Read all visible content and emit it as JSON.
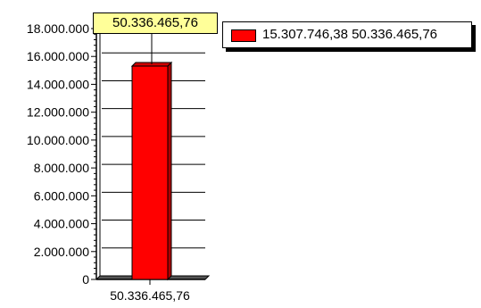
{
  "chart_data": {
    "type": "bar",
    "categories": [
      "50.336.465,76"
    ],
    "series": [
      {
        "name": "15.307.746,38 50.336.465,76",
        "values": [
          15307746.38
        ],
        "color": "#ff0000"
      }
    ],
    "yticks": [
      "0",
      "2.000.000",
      "4.000.000",
      "6.000.000",
      "8.000.000",
      "10.000.000",
      "12.000.000",
      "14.000.000",
      "16.000.000",
      "18.000.000"
    ],
    "ylim": [
      0,
      18000000
    ],
    "tooltip": "50.336.465,76",
    "legend_position": "top-right",
    "grid": false
  }
}
